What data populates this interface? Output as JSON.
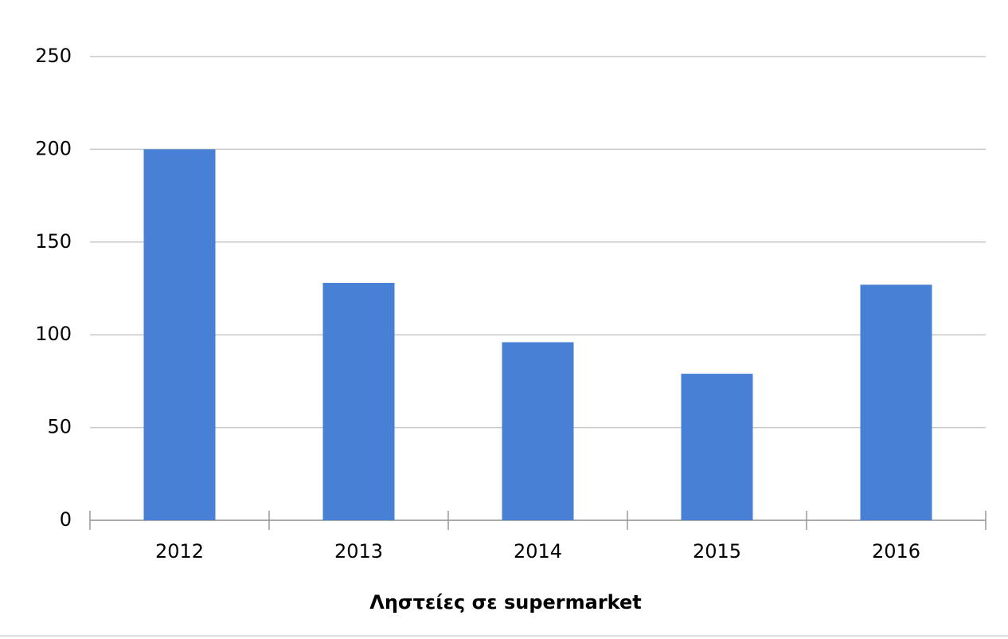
{
  "chart_data": {
    "type": "bar",
    "x_label": "Ληστείες σε supermarket",
    "categories": [
      "2012",
      "2013",
      "2014",
      "2015",
      "2016"
    ],
    "values": [
      200,
      128,
      96,
      79,
      127
    ],
    "color": "#4780d5",
    "ylim": [
      0,
      250
    ],
    "yticks": [
      0,
      50,
      100,
      150,
      200,
      250
    ],
    "grid": true
  }
}
